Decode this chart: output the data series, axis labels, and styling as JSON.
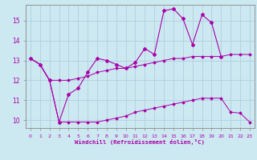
{
  "xlabel": "Windchill (Refroidissement éolien,°C)",
  "bg_color": "#cce8f0",
  "grid_color": "#aaccdd",
  "line_color": "#aa00aa",
  "spine_color": "#888888",
  "xlim": [
    -0.5,
    23.5
  ],
  "ylim": [
    9.6,
    15.8
  ],
  "yticks": [
    10,
    11,
    12,
    13,
    14,
    15
  ],
  "xticks": [
    0,
    1,
    2,
    3,
    4,
    5,
    6,
    7,
    8,
    9,
    10,
    11,
    12,
    13,
    14,
    15,
    16,
    17,
    18,
    19,
    20,
    21,
    22,
    23
  ],
  "line1_x": [
    0,
    1,
    2,
    3,
    4,
    5,
    6,
    7,
    8,
    9,
    10,
    11,
    12,
    13,
    14,
    15,
    16,
    17,
    18,
    19,
    20
  ],
  "line1_y": [
    13.1,
    12.8,
    12.0,
    9.9,
    11.3,
    11.6,
    12.4,
    13.1,
    13.0,
    12.8,
    12.6,
    12.9,
    13.6,
    13.3,
    15.5,
    15.6,
    15.1,
    13.8,
    15.3,
    14.9,
    13.2
  ],
  "line2_x": [
    0,
    1,
    2,
    3,
    4,
    5,
    6,
    7,
    8,
    9,
    10,
    11,
    12,
    13,
    14,
    15,
    16,
    17,
    18,
    19,
    20,
    21,
    22,
    23
  ],
  "line2_y": [
    13.1,
    12.8,
    12.0,
    12.0,
    12.0,
    12.1,
    12.2,
    12.4,
    12.5,
    12.6,
    12.6,
    12.7,
    12.8,
    12.9,
    13.0,
    13.1,
    13.1,
    13.2,
    13.2,
    13.2,
    13.2,
    13.3,
    13.3,
    13.3
  ],
  "line3_x": [
    0,
    1,
    2,
    3,
    4,
    5,
    6,
    7,
    8,
    9,
    10,
    11,
    12,
    13,
    14,
    15,
    16,
    17,
    18,
    19,
    20,
    21,
    22,
    23
  ],
  "line3_y": [
    13.1,
    12.8,
    12.0,
    9.9,
    9.9,
    9.9,
    9.9,
    9.9,
    10.0,
    10.1,
    10.2,
    10.4,
    10.5,
    10.6,
    10.7,
    10.8,
    10.9,
    11.0,
    11.1,
    11.1,
    11.1,
    10.4,
    10.35,
    9.9
  ]
}
